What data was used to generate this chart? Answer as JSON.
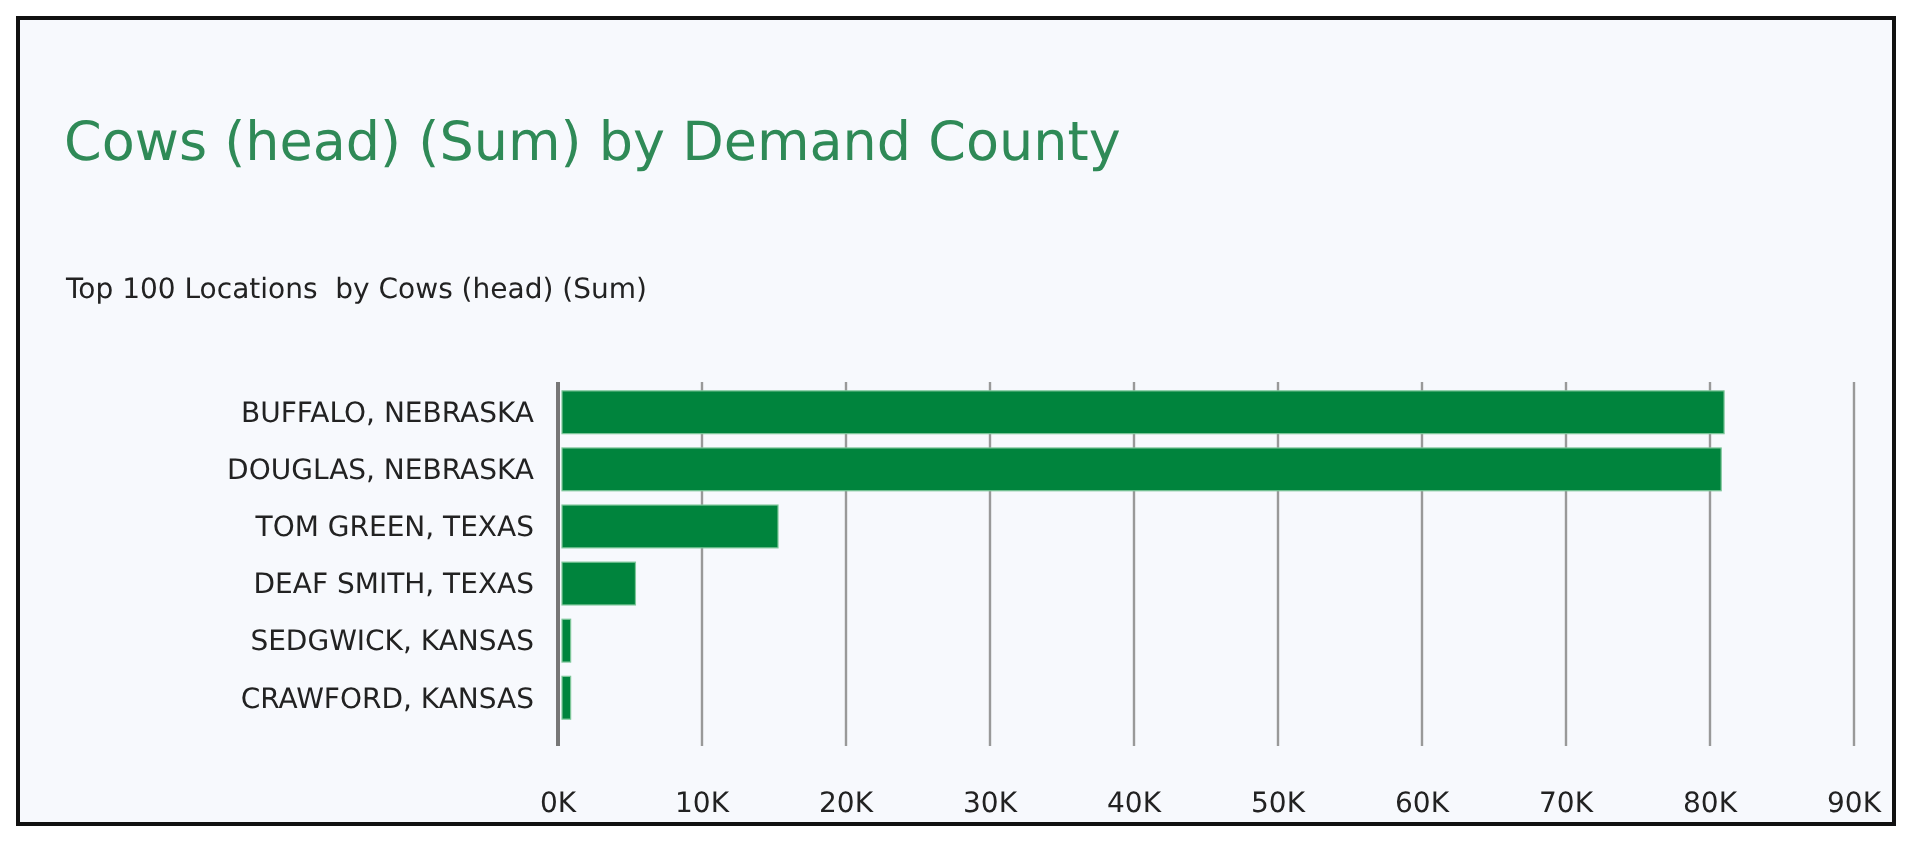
{
  "chart_data": {
    "type": "bar",
    "orientation": "horizontal",
    "title": "Cows (head) (Sum) by Demand County",
    "subtitle": "Top 100 Locations  by Cows (head) (Sum)",
    "categories": [
      "BUFFALO, NEBRASKA",
      "DOUGLAS, NEBRASKA",
      "TOM GREEN, TEXAS",
      "DEAF SMITH, TEXAS",
      "SEDGWICK, KANSAS",
      "CRAWFORD, KANSAS"
    ],
    "values": [
      80700,
      80500,
      15000,
      5100,
      600,
      600
    ],
    "color": "#00843d",
    "xlim": [
      0,
      90000
    ],
    "xticks": [
      {
        "value": 0,
        "label": "0K"
      },
      {
        "value": 10000,
        "label": "10K"
      },
      {
        "value": 20000,
        "label": "20K"
      },
      {
        "value": 30000,
        "label": "30K"
      },
      {
        "value": 40000,
        "label": "40K"
      },
      {
        "value": 50000,
        "label": "50K"
      },
      {
        "value": 60000,
        "label": "60K"
      },
      {
        "value": 70000,
        "label": "70K"
      },
      {
        "value": 80000,
        "label": "80K"
      },
      {
        "value": 90000,
        "label": "90K"
      }
    ],
    "grid": "x"
  }
}
